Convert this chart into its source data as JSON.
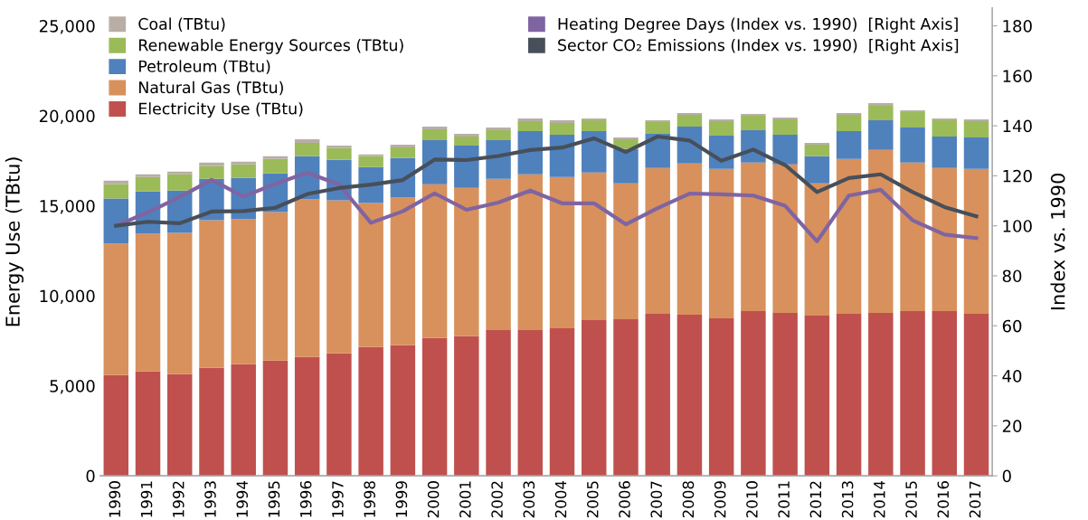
{
  "chart_data": {
    "type": "bar",
    "stacked": true,
    "ylabel": "Energy Use (TBtu)",
    "y2label": "Index vs. 1990",
    "categories": [
      "1990",
      "1991",
      "1992",
      "1993",
      "1994",
      "1995",
      "1996",
      "1997",
      "1998",
      "1999",
      "2000",
      "2001",
      "2002",
      "2003",
      "2004",
      "2005",
      "2006",
      "2007",
      "2008",
      "2009",
      "2010",
      "2011",
      "2012",
      "2013",
      "2014",
      "2015",
      "2016",
      "2017"
    ],
    "series": [
      {
        "name": "Electricity Use (TBtu)",
        "color": "#c0504d",
        "values": [
          5600,
          5800,
          5650,
          6000,
          6200,
          6400,
          6600,
          6800,
          7150,
          7250,
          7650,
          7750,
          8100,
          8100,
          8200,
          8650,
          8700,
          9000,
          8950,
          8750,
          9150,
          9050,
          8900,
          9000,
          9050,
          9150,
          9150,
          9000
        ]
      },
      {
        "name": "Natural Gas (TBtu)",
        "color": "#d8915c",
        "values": [
          7300,
          7650,
          7850,
          8200,
          8050,
          8250,
          8750,
          8500,
          8000,
          8200,
          8550,
          8250,
          8400,
          8650,
          8400,
          8200,
          7550,
          8100,
          8400,
          8300,
          8250,
          8250,
          7350,
          8600,
          9050,
          8250,
          7950,
          8050
        ]
      },
      {
        "name": "Petroleum (TBtu)",
        "color": "#4f81bd",
        "values": [
          2500,
          2350,
          2350,
          2300,
          2300,
          2150,
          2400,
          2250,
          2000,
          2200,
          2450,
          2350,
          2150,
          2400,
          2350,
          2300,
          1900,
          1900,
          2050,
          1850,
          1800,
          1650,
          1500,
          1550,
          1650,
          1950,
          1750,
          1750
        ]
      },
      {
        "name": "Renewable Energy Sources (TBtu)",
        "color": "#9bbb59",
        "values": [
          800,
          800,
          900,
          700,
          750,
          800,
          750,
          650,
          600,
          600,
          600,
          500,
          550,
          550,
          650,
          600,
          550,
          650,
          650,
          800,
          800,
          850,
          650,
          900,
          800,
          850,
          900,
          900
        ]
      },
      {
        "name": "Coal (TBtu)",
        "color": "#b8aea6",
        "values": [
          200,
          150,
          150,
          200,
          150,
          150,
          200,
          150,
          100,
          150,
          150,
          150,
          150,
          150,
          150,
          100,
          100,
          100,
          100,
          100,
          100,
          100,
          100,
          100,
          150,
          100,
          100,
          100
        ]
      },
      {
        "name": "Heating Degree Days (Index vs. 1990)  [Right Axis]",
        "type": "line",
        "axis": "y2",
        "color": "#8064a2",
        "values": [
          100,
          105.4,
          111.5,
          118.4,
          111.7,
          116.8,
          121.2,
          116.5,
          101.2,
          105.8,
          113,
          106.4,
          109.3,
          114.1,
          109,
          109,
          100.6,
          107.1,
          112.9,
          112.6,
          112.1,
          108,
          93.8,
          112.1,
          114.4,
          102.2,
          96.5,
          95.1
        ]
      },
      {
        "name": "Sector CO₂ Emissions (Index vs. 1990)  [Right Axis]",
        "type": "line",
        "axis": "y2",
        "color": "#474f5a",
        "values": [
          100,
          101.6,
          101,
          105.7,
          105.9,
          107.2,
          112.7,
          115.1,
          116.5,
          118.3,
          126.5,
          126.3,
          127.9,
          130.3,
          131.3,
          135,
          129.5,
          135.7,
          134.1,
          126,
          130.5,
          124.3,
          113.5,
          119.1,
          120.6,
          113.5,
          107.5,
          103.8
        ]
      }
    ],
    "ylim": [
      0,
      26000
    ],
    "yticks": [
      {
        "value": 0,
        "label": "0"
      },
      {
        "value": 5000,
        "label": "5,000"
      },
      {
        "value": 10000,
        "label": "10,000"
      },
      {
        "value": 15000,
        "label": "15,000"
      },
      {
        "value": 20000,
        "label": "20,000"
      },
      {
        "value": 25000,
        "label": "25,000"
      }
    ],
    "y2lim": [
      0,
      187.2
    ],
    "y2ticks": [
      0,
      20,
      40,
      60,
      80,
      100,
      120,
      140,
      160,
      180
    ],
    "legend": "top",
    "grid": false,
    "marker": "none",
    "line_style": "solid"
  }
}
